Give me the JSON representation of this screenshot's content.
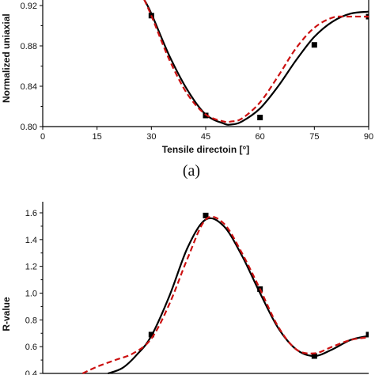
{
  "chart_data": [
    {
      "type": "line",
      "title": "",
      "xlabel": "Tensile directoin [°]",
      "ylabel": "Normalized uniaxial",
      "xlim": [
        0,
        90
      ],
      "ylim": [
        0.8,
        0.93
      ],
      "xticks": [
        0,
        15,
        30,
        45,
        60,
        75,
        90
      ],
      "xtick_labels": [
        "0",
        "15",
        "30",
        "45",
        "60",
        "75",
        "90"
      ],
      "yticks": [
        0.8,
        0.84,
        0.88,
        0.92
      ],
      "ytick_labels": [
        "0.80",
        "0.84",
        "0.88",
        "0.92"
      ],
      "grid": false,
      "series": [
        {
          "style": "scatter",
          "color": "#000000",
          "x": [
            30,
            45,
            60,
            75,
            90
          ],
          "y": [
            0.91,
            0.811,
            0.809,
            0.881,
            0.909
          ]
        },
        {
          "style": "solid",
          "color": "#000000",
          "x": [
            28,
            30,
            35,
            40,
            45,
            50,
            52,
            55,
            60,
            65,
            70,
            75,
            80,
            85,
            90
          ],
          "y": [
            0.926,
            0.912,
            0.87,
            0.836,
            0.812,
            0.803,
            0.802,
            0.805,
            0.818,
            0.84,
            0.866,
            0.889,
            0.904,
            0.912,
            0.914
          ]
        },
        {
          "style": "dashed",
          "color": "#cc1111",
          "x": [
            28,
            30,
            35,
            40,
            45,
            50,
            52,
            55,
            60,
            65,
            70,
            75,
            80,
            84,
            90
          ],
          "y": [
            0.926,
            0.91,
            0.866,
            0.832,
            0.812,
            0.805,
            0.805,
            0.808,
            0.824,
            0.85,
            0.878,
            0.898,
            0.908,
            0.909,
            0.909
          ]
        }
      ]
    },
    {
      "type": "line",
      "title": "",
      "xlabel": "",
      "ylabel": "R-value",
      "xlim": [
        0,
        90
      ],
      "ylim": [
        0.4,
        1.7
      ],
      "yticks": [
        0.4,
        0.6,
        0.8,
        1.0,
        1.2,
        1.4,
        1.6
      ],
      "ytick_labels": [
        "0.4",
        "0.6",
        "0.8",
        "1.0",
        "1.2",
        "1.4",
        "1.6"
      ],
      "grid": false,
      "series": [
        {
          "style": "scatter",
          "color": "#000000",
          "x": [
            30,
            45,
            60,
            75,
            90
          ],
          "y": [
            0.69,
            1.58,
            1.03,
            0.53,
            0.69
          ]
        },
        {
          "style": "solid",
          "color": "#000000",
          "x": [
            18,
            22,
            26,
            30,
            35,
            40,
            45,
            50,
            55,
            60,
            65,
            70,
            75,
            80,
            85,
            90
          ],
          "y": [
            0.4,
            0.44,
            0.54,
            0.68,
            0.98,
            1.34,
            1.55,
            1.5,
            1.28,
            1.0,
            0.74,
            0.58,
            0.53,
            0.58,
            0.65,
            0.68
          ]
        },
        {
          "style": "dashed",
          "color": "#cc1111",
          "x": [
            11,
            15,
            20,
            25,
            30,
            35,
            40,
            45,
            50,
            55,
            60,
            65,
            70,
            75,
            80,
            85,
            90
          ],
          "y": [
            0.4,
            0.45,
            0.5,
            0.55,
            0.66,
            0.92,
            1.26,
            1.55,
            1.52,
            1.3,
            1.03,
            0.75,
            0.58,
            0.55,
            0.6,
            0.65,
            0.67
          ]
        }
      ]
    }
  ],
  "panel_label": "(a)"
}
